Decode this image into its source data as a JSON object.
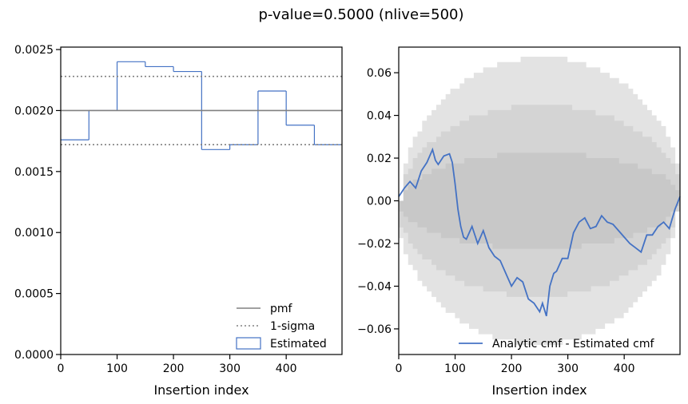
{
  "title": "p-value=0.5000 (nlive=500)",
  "chart_data": [
    {
      "type": "step",
      "xlabel": "Insertion index",
      "ylabel": "",
      "xlim": [
        0,
        499
      ],
      "ylim": [
        0,
        0.00252
      ],
      "xticks": [
        "0",
        "100",
        "200",
        "300",
        "400"
      ],
      "yticks": [
        "0.0000",
        "0.0005",
        "0.0010",
        "0.0015",
        "0.0020",
        "0.0025"
      ],
      "bin_edges": [
        0,
        50,
        100,
        150,
        200,
        250,
        300,
        350,
        400,
        450,
        499
      ],
      "series": [
        {
          "name": "Estimated",
          "style": "step",
          "color": "#4472c4",
          "values": [
            0.00176,
            0.002,
            0.0024,
            0.00236,
            0.00232,
            0.00168,
            0.00172,
            0.00216,
            0.00188,
            0.00172
          ]
        },
        {
          "name": "pmf",
          "style": "hline",
          "color": "#808080",
          "value": 0.002
        },
        {
          "name": "1-sigma",
          "style": "dotted-hlines",
          "color": "#808080",
          "values": [
            0.00172,
            0.00228
          ]
        }
      ],
      "legend": {
        "position": "bottom-right",
        "entries": [
          "pmf",
          "1-sigma",
          "Estimated"
        ]
      }
    },
    {
      "type": "line",
      "xlabel": "Insertion index",
      "ylabel": "",
      "xlim": [
        0,
        499
      ],
      "ylim": [
        -0.072,
        0.072
      ],
      "xticks": [
        "0",
        "100",
        "200",
        "300",
        "400"
      ],
      "yticks": [
        "−0.06",
        "−0.04",
        "−0.02",
        "0.00",
        "0.02",
        "0.04",
        "0.06"
      ],
      "bands": [
        {
          "sigma": 1,
          "color": "#c8c8c8",
          "amplitude": 0.0224
        },
        {
          "sigma": 2,
          "color": "#d4d4d4",
          "amplitude": 0.0448
        },
        {
          "sigma": 3,
          "color": "#e3e3e3",
          "amplitude": 0.0672
        }
      ],
      "series": [
        {
          "name": "Analytic cmf - Estimated cmf",
          "color": "#4472c4",
          "x": [
            0,
            10,
            20,
            30,
            40,
            50,
            60,
            65,
            70,
            80,
            90,
            95,
            100,
            105,
            110,
            115,
            120,
            130,
            140,
            150,
            160,
            170,
            180,
            190,
            200,
            210,
            220,
            230,
            240,
            250,
            255,
            262,
            268,
            275,
            280,
            290,
            300,
            310,
            320,
            330,
            340,
            350,
            360,
            370,
            380,
            390,
            400,
            410,
            420,
            430,
            440,
            450,
            460,
            470,
            480,
            490,
            499
          ],
          "y": [
            0.002,
            0.006,
            0.009,
            0.006,
            0.014,
            0.018,
            0.024,
            0.019,
            0.017,
            0.021,
            0.022,
            0.018,
            0.008,
            -0.004,
            -0.012,
            -0.017,
            -0.018,
            -0.012,
            -0.02,
            -0.014,
            -0.022,
            -0.026,
            -0.028,
            -0.034,
            -0.04,
            -0.036,
            -0.038,
            -0.046,
            -0.048,
            -0.052,
            -0.048,
            -0.054,
            -0.04,
            -0.034,
            -0.033,
            -0.027,
            -0.027,
            -0.015,
            -0.01,
            -0.008,
            -0.013,
            -0.012,
            -0.007,
            -0.01,
            -0.011,
            -0.014,
            -0.017,
            -0.02,
            -0.022,
            -0.024,
            -0.016,
            -0.016,
            -0.012,
            -0.01,
            -0.013,
            -0.004,
            0.002
          ]
        }
      ],
      "legend": {
        "position": "bottom-right",
        "entries": [
          "Analytic cmf - Estimated cmf"
        ]
      }
    }
  ]
}
